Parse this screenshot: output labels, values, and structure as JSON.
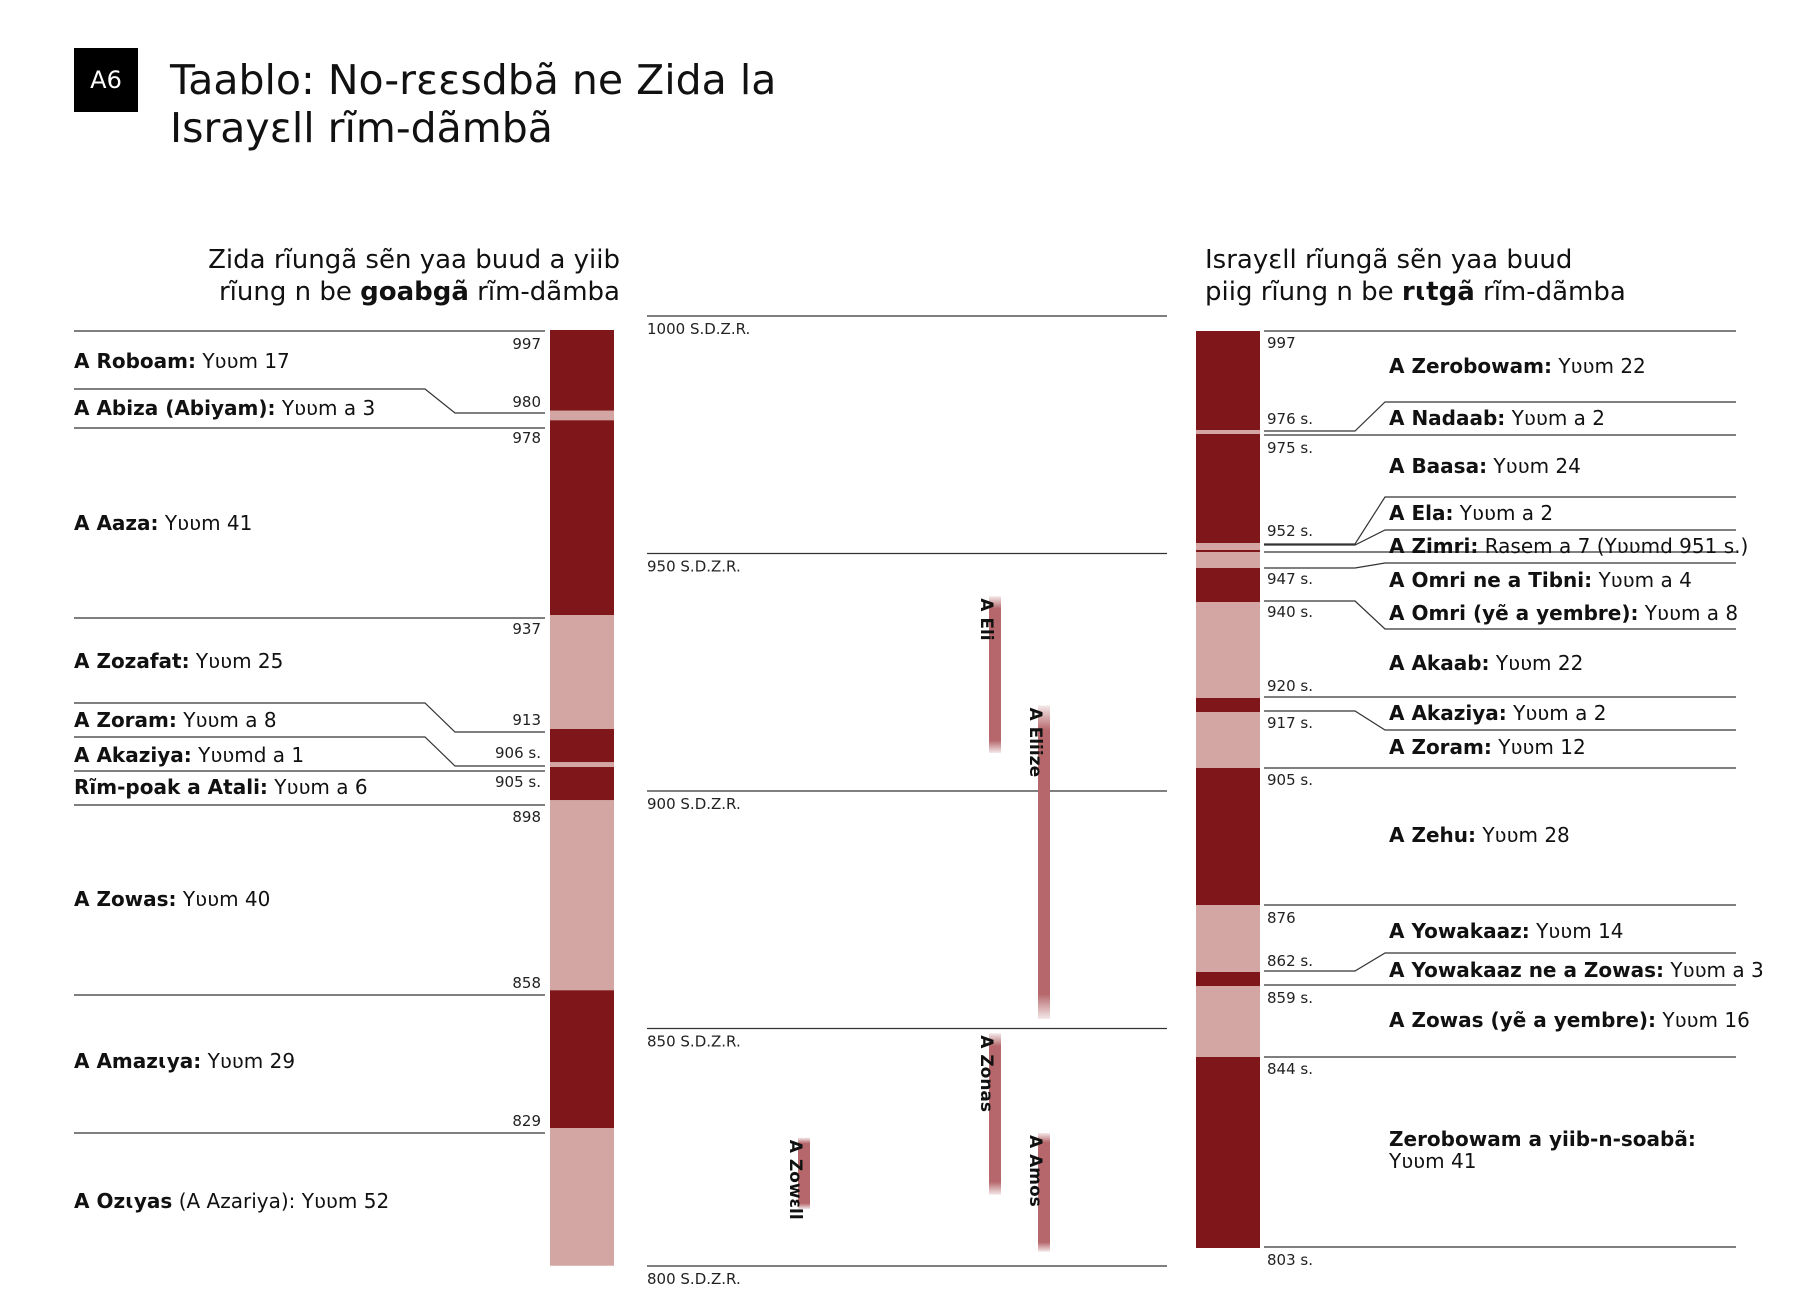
{
  "badge": "A6",
  "title": [
    "Taablo: No-rεεsdbã ne Zida la",
    "Israyεll rĩm-dãmbã"
  ],
  "header_left": {
    "line1": "Zida rĩungã sẽn yaa buud a yiib",
    "line2_pre": "rĩung n be ",
    "line2_bold": "goabgã",
    "line2_post": " rĩm-dãmba"
  },
  "header_right": {
    "line1": "Israyεll rĩungã sẽn yaa buud",
    "line2_pre": "piig rĩung n be ",
    "line2_bold": "rɩtgã",
    "line2_post": " rĩm-dãmba"
  },
  "colors": {
    "dark": "#7f1619",
    "light": "#d3a6a4",
    "prophet": "#b5676b",
    "line": "#333333"
  },
  "judah": {
    "reigns": [
      {
        "start": 997,
        "end": 980,
        "shade": "dark",
        "name": "A Roboam:",
        "detail": " Yʋʋm 17"
      },
      {
        "start": 980,
        "end": 978,
        "shade": "light",
        "name": "A Abiza (Abiyam):",
        "detail": " Yʋʋm a 3"
      },
      {
        "start": 978,
        "end": 937,
        "shade": "dark",
        "name": "A Aaza:",
        "detail": " Yʋʋm 41"
      },
      {
        "start": 937,
        "end": 913,
        "shade": "light",
        "name": "A Zozafat:",
        "detail": " Yʋʋm 25"
      },
      {
        "start": 913,
        "end": 906,
        "shade": "dark",
        "name": "A Zoram:",
        "detail": " Yʋʋm a 8"
      },
      {
        "start": 906,
        "end": 905,
        "shade": "light",
        "name": "A Akaziya:",
        "detail": " Yʋʋmd a 1"
      },
      {
        "start": 905,
        "end": 898,
        "shade": "dark",
        "name": "Rĩm-poak a Atali:",
        "detail": " Yʋʋm a 6"
      },
      {
        "start": 898,
        "end": 858,
        "shade": "light",
        "name": "A Zowas:",
        "detail": " Yʋʋm 40"
      },
      {
        "start": 858,
        "end": 829,
        "shade": "dark",
        "name": "A Amazɩya:",
        "detail": " Yʋʋm 29"
      },
      {
        "start": 829,
        "end": 800,
        "shade": "light",
        "name": "A Ozɩyas",
        "detail": " (A Azariya): Yʋʋm 52"
      }
    ],
    "boundary_labels": [
      "997",
      "980",
      "978",
      "937",
      "913",
      "906 s.",
      "905 s.",
      "898",
      "858",
      "829"
    ]
  },
  "timeline": {
    "labels": [
      "1000 S.D.Z.R.",
      "950 S.D.Z.R.",
      "900 S.D.Z.R.",
      "850 S.D.Z.R.",
      "800 S.D.Z.R."
    ],
    "prophets": [
      {
        "name": "A Eli",
        "from": 941,
        "to": 908
      },
      {
        "name": "A Eliize",
        "from": 918,
        "to": 852
      },
      {
        "name": "A Zonas",
        "from": 849,
        "to": 815
      },
      {
        "name": "A Amos",
        "from": 828,
        "to": 803
      },
      {
        "name": "A Zowεll",
        "from": 827,
        "to": 812
      }
    ]
  },
  "israel": {
    "reigns": [
      {
        "start": 997,
        "end": 976,
        "shade": "dark",
        "name": "A Zerobowam:",
        "detail": " Yʋʋm 22"
      },
      {
        "start": 976,
        "end": 975,
        "shade": "light",
        "name": "A Nadaab:",
        "detail": " Yʋʋm a 2"
      },
      {
        "start": 975,
        "end": 952,
        "shade": "dark",
        "name": "A Baasa:",
        "detail": " Yʋʋm 24"
      },
      {
        "start": 952,
        "end": 951.3,
        "shade": "light",
        "name": "A Ela:",
        "detail": " Yʋʋm a 2"
      },
      {
        "start": 951.3,
        "end": 951,
        "shade": "dark",
        "name": "A Zimri:",
        "detail": " Rasem a 7 (Yʋʋmd 951 s.)"
      },
      {
        "start": 951,
        "end": 947,
        "shade": "light",
        "name": "A Omri ne a Tibni:",
        "detail": " Yʋʋm a 4"
      },
      {
        "start": 947,
        "end": 940,
        "shade": "dark",
        "name": "A Omri (yẽ a yembre):",
        "detail": " Yʋʋm a 8"
      },
      {
        "start": 940,
        "end": 920,
        "shade": "light",
        "name": "A Akaab:",
        "detail": " Yʋʋm 22"
      },
      {
        "start": 920,
        "end": 917,
        "shade": "dark",
        "name": "A Akaziya:",
        "detail": " Yʋʋm a 2"
      },
      {
        "start": 917,
        "end": 905,
        "shade": "light",
        "name": "A Zoram:",
        "detail": " Yʋʋm 12"
      },
      {
        "start": 905,
        "end": 876,
        "shade": "dark",
        "name": "A Zehu:",
        "detail": " Yʋʋm 28"
      },
      {
        "start": 876,
        "end": 862,
        "shade": "light",
        "name": "A Yowakaaz:",
        "detail": " Yʋʋm 14"
      },
      {
        "start": 862,
        "end": 859,
        "shade": "dark",
        "name": "A Yowakaaz ne a Zowas:",
        "detail": " Yʋʋm a 3"
      },
      {
        "start": 859,
        "end": 844,
        "shade": "light",
        "name": "A Zowas (yẽ a yembre):",
        "detail": " Yʋʋm 16"
      },
      {
        "start": 844,
        "end": 803,
        "shade": "dark",
        "name": "Zerobowam a yiib-n-soabã:",
        "detail": "Yʋʋm 41"
      }
    ],
    "boundary_labels": [
      "997",
      "976 s.",
      "975 s.",
      "952 s.",
      "947 s.",
      "940 s.",
      "920 s.",
      "917 s.",
      "905 s.",
      "876",
      "862 s.",
      "859 s.",
      "844 s.",
      "803 s."
    ]
  }
}
